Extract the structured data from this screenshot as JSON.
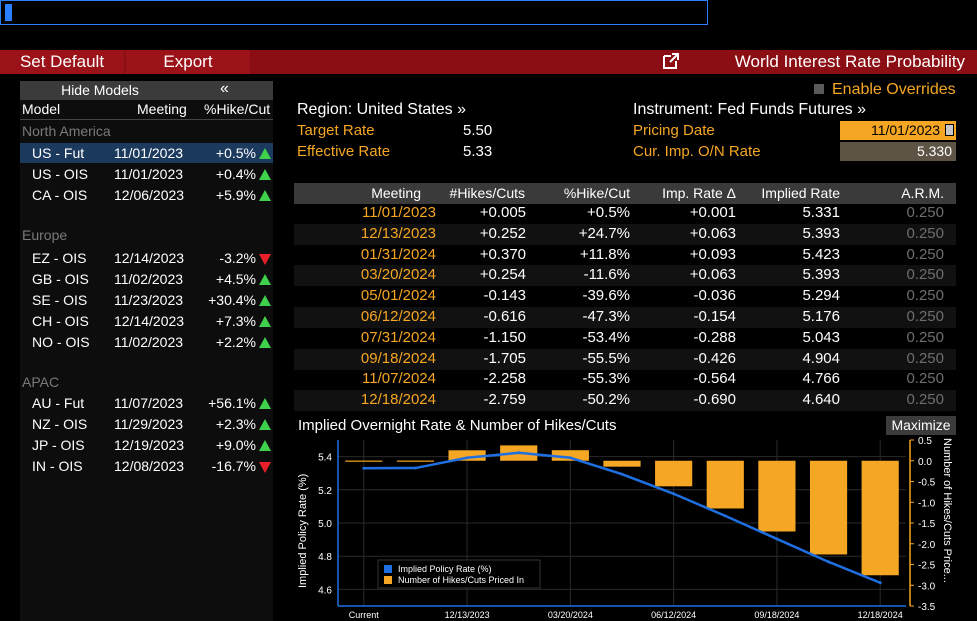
{
  "toolbar": {
    "set_default": "Set Default",
    "export": "Export",
    "window_title": "World Interest Rate Probability"
  },
  "left_panel": {
    "hide_models": "Hide Models",
    "collapse_glyph": "«",
    "columns": {
      "model": "Model",
      "meeting": "Meeting",
      "pct": "%Hike/Cut"
    },
    "groups": [
      {
        "name": "North America",
        "rows": [
          {
            "model": "US - Fut",
            "meeting": "11/01/2023",
            "pct": "+0.5%",
            "dir": "up",
            "selected": true
          },
          {
            "model": "US - OIS",
            "meeting": "11/01/2023",
            "pct": "+0.4%",
            "dir": "up"
          },
          {
            "model": "CA - OIS",
            "meeting": "12/06/2023",
            "pct": "+5.9%",
            "dir": "up"
          }
        ]
      },
      {
        "name": "Europe",
        "rows": [
          {
            "model": "EZ - OIS",
            "meeting": "12/14/2023",
            "pct": "-3.2%",
            "dir": "down"
          },
          {
            "model": "GB - OIS",
            "meeting": "11/02/2023",
            "pct": "+4.5%",
            "dir": "up"
          },
          {
            "model": "SE - OIS",
            "meeting": "11/23/2023",
            "pct": "+30.4%",
            "dir": "up"
          },
          {
            "model": "CH - OIS",
            "meeting": "12/14/2023",
            "pct": "+7.3%",
            "dir": "up"
          },
          {
            "model": "NO - OIS",
            "meeting": "11/02/2023",
            "pct": "+2.2%",
            "dir": "up"
          }
        ]
      },
      {
        "name": "APAC",
        "rows": [
          {
            "model": "AU - Fut",
            "meeting": "11/07/2023",
            "pct": "+56.1%",
            "dir": "up"
          },
          {
            "model": "NZ - OIS",
            "meeting": "11/29/2023",
            "pct": "+2.3%",
            "dir": "up"
          },
          {
            "model": "JP - OIS",
            "meeting": "12/19/2023",
            "pct": "+9.0%",
            "dir": "up"
          },
          {
            "model": "IN - OIS",
            "meeting": "12/08/2023",
            "pct": "-16.7%",
            "dir": "down"
          }
        ]
      }
    ]
  },
  "info": {
    "enable_overrides": "Enable Overrides",
    "region": "Region: United States »",
    "target_rate_label": "Target Rate",
    "target_rate": "5.50",
    "effective_rate_label": "Effective Rate",
    "effective_rate": "5.33",
    "instrument": "Instrument: Fed Funds Futures »",
    "pricing_date_label": "Pricing Date",
    "pricing_date": "11/01/2023",
    "on_rate_label": "Cur. Imp. O/N Rate",
    "on_rate": "5.330"
  },
  "table": {
    "headers": [
      "Meeting",
      "#Hikes/Cuts",
      "%Hike/Cut",
      "Imp. Rate Δ",
      "Implied Rate",
      "A.R.M."
    ],
    "rows": [
      [
        "11/01/2023",
        "+0.005",
        "+0.5%",
        "+0.001",
        "5.331",
        "0.250"
      ],
      [
        "12/13/2023",
        "+0.252",
        "+24.7%",
        "+0.063",
        "5.393",
        "0.250"
      ],
      [
        "01/31/2024",
        "+0.370",
        "+11.8%",
        "+0.093",
        "5.423",
        "0.250"
      ],
      [
        "03/20/2024",
        "+0.254",
        "-11.6%",
        "+0.063",
        "5.393",
        "0.250"
      ],
      [
        "05/01/2024",
        "-0.143",
        "-39.6%",
        "-0.036",
        "5.294",
        "0.250"
      ],
      [
        "06/12/2024",
        "-0.616",
        "-47.3%",
        "-0.154",
        "5.176",
        "0.250"
      ],
      [
        "07/31/2024",
        "-1.150",
        "-53.4%",
        "-0.288",
        "5.043",
        "0.250"
      ],
      [
        "09/18/2024",
        "-1.705",
        "-55.5%",
        "-0.426",
        "4.904",
        "0.250"
      ],
      [
        "11/07/2024",
        "-2.258",
        "-55.3%",
        "-0.564",
        "4.766",
        "0.250"
      ],
      [
        "12/18/2024",
        "-2.759",
        "-50.2%",
        "-0.690",
        "4.640",
        "0.250"
      ]
    ]
  },
  "chart": {
    "title": "Implied Overnight Rate & Number of Hikes/Cuts",
    "maximize": "Maximize",
    "left_axis_label": "Implied Policy Rate (%)",
    "right_axis_label": "Number of Hikes/Cuts Price...",
    "legend": [
      "Implied Policy Rate (%)",
      "Number of Hikes/Cuts Priced In"
    ],
    "colors": {
      "line": "#1f6fe0",
      "bars": "#f5a623"
    }
  },
  "chart_data": {
    "type": "bar",
    "categories": [
      "Current",
      "11/01/2023",
      "12/13/2023",
      "01/31/2024",
      "03/20/2024",
      "05/01/2024",
      "06/12/2024",
      "07/31/2024",
      "09/18/2024",
      "11/07/2024",
      "12/18/2024"
    ],
    "x_tick_labels": [
      "Current",
      "12/13/2023",
      "03/20/2024",
      "06/12/2024",
      "09/18/2024",
      "12/18/2024"
    ],
    "series": [
      {
        "name": "Implied Policy Rate (%)",
        "type": "line",
        "axis": "left",
        "values": [
          5.33,
          5.331,
          5.393,
          5.423,
          5.393,
          5.294,
          5.176,
          5.043,
          4.904,
          4.766,
          4.64
        ]
      },
      {
        "name": "Number of Hikes/Cuts Priced In",
        "type": "bar",
        "axis": "right",
        "values": [
          0.005,
          0.005,
          0.252,
          0.37,
          0.254,
          -0.143,
          -0.616,
          -1.15,
          -1.705,
          -2.258,
          -2.759
        ]
      }
    ],
    "left_axis": {
      "ylim": [
        4.5,
        5.5
      ],
      "ticks": [
        "5.4",
        "5.2",
        "5.0",
        "4.8",
        "4.6"
      ]
    },
    "right_axis": {
      "ylim": [
        -3.5,
        0.5
      ],
      "ticks": [
        "0.5",
        "0.0",
        "-0.5",
        "-1.0",
        "-1.5",
        "-2.0",
        "-2.5",
        "-3.0",
        "-3.5"
      ]
    },
    "grid": true,
    "legend_position": "bottom-left"
  }
}
